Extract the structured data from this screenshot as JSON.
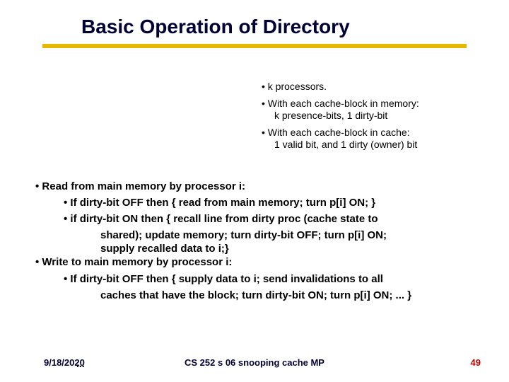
{
  "title": "Basic Operation of Directory",
  "colors": {
    "title_text": "#000033",
    "underline": "#e6b800",
    "body_text": "#000000",
    "footer_text": "#000033",
    "page_number": "#c00000",
    "background": "#ffffff"
  },
  "top_bullets": {
    "b1": "k processors.",
    "b2_line1": "With each cache-block in memory:",
    "b2_line2": "k  presence-bits, 1 dirty-bit",
    "b3_line1": "With each cache-block in cache:",
    "b3_line2": "1 valid bit, and 1 dirty (owner) bit"
  },
  "main": {
    "read_head": "Read from main memory by processor i:",
    "read_off": "If dirty-bit OFF then { read from main memory; turn p[i] ON; }",
    "read_on_l1": "if dirty-bit ON   then { recall line from dirty proc (cache state to",
    "read_on_l2": "shared); update memory; turn dirty-bit OFF; turn p[i] ON;",
    "read_on_l3": "supply recalled data to i;}",
    "write_head": "Write to main memory by processor i:",
    "write_off_l1": "If dirty-bit OFF then { supply data to i; send invalidations to all",
    "write_off_l2": "caches that have the block; turn dirty-bit ON; turn p[i] ON; ... }",
    "ellipsis": "..."
  },
  "footer": {
    "date": "9/18/2020",
    "center": "CS 252 s 06 snooping cache MP",
    "page": "49"
  }
}
